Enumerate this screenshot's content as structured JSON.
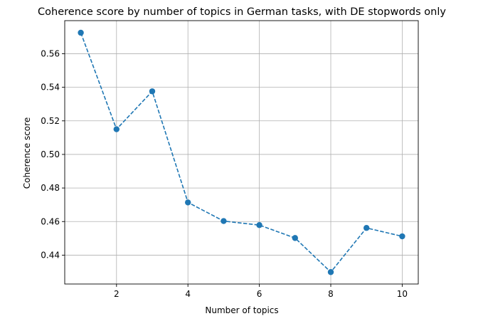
{
  "chart_data": {
    "type": "line",
    "title": "Coherence score by number of topics in German tasks, with DE stopwords only",
    "xlabel": "Number of topics",
    "ylabel": "Coherence score",
    "x": [
      1,
      2,
      3,
      4,
      5,
      6,
      7,
      8,
      9,
      10
    ],
    "series": [
      {
        "values": [
          0.5725,
          0.515,
          0.5376,
          0.4714,
          0.4603,
          0.4579,
          0.4502,
          0.4299,
          0.4562,
          0.4512
        ]
      }
    ],
    "xlim": [
      0.55,
      10.45
    ],
    "ylim": [
      0.4228,
      0.5797
    ],
    "xticks": [
      2,
      4,
      6,
      8,
      10
    ],
    "xtick_labels": [
      "2",
      "4",
      "6",
      "8",
      "10"
    ],
    "yticks": [
      0.44,
      0.46,
      0.48,
      0.5,
      0.52,
      0.54,
      0.56
    ],
    "ytick_labels": [
      "0.44",
      "0.46",
      "0.48",
      "0.50",
      "0.52",
      "0.54",
      "0.56"
    ],
    "grid": true,
    "line_style": "dashed",
    "marker": "circle",
    "legend": "none",
    "colors": {
      "series": "#1f77b4",
      "grid": "#b0b0b0",
      "axes": "#000000"
    }
  }
}
